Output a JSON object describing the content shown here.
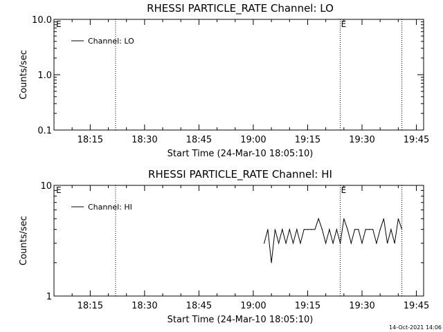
{
  "chart_data": [
    {
      "type": "line",
      "title": "RHESSI PARTICLE_RATE Channel: LO",
      "xlabel": "Start Time (24-Mar-10 18:05:10)",
      "ylabel": "Counts/sec",
      "y_scale": "log",
      "ylim": [
        0.1,
        10.0
      ],
      "y_ticks": [
        0.1,
        1.0,
        10.0
      ],
      "y_tick_labels": [
        "0.1",
        "1.0",
        "10.0"
      ],
      "xlim": [
        "18:05",
        "19:47"
      ],
      "x_ticks": [
        "18:15",
        "18:30",
        "18:45",
        "19:00",
        "19:15",
        "19:30",
        "19:45"
      ],
      "event_lines": [
        {
          "time": "18:22",
          "label": ""
        },
        {
          "time": "19:24",
          "label": "E"
        },
        {
          "time": "19:41",
          "label": ""
        }
      ],
      "edge_marker": "E",
      "legend_position": "top-left",
      "series": [
        {
          "name": "Channel: LO",
          "x": [],
          "y": []
        }
      ]
    },
    {
      "type": "line",
      "title": "RHESSI PARTICLE_RATE Channel: HI",
      "xlabel": "Start Time (24-Mar-10 18:05:10)",
      "ylabel": "Counts/sec",
      "y_scale": "log",
      "ylim": [
        1,
        10
      ],
      "y_ticks": [
        1,
        10
      ],
      "y_tick_labels": [
        "1",
        "10"
      ],
      "xlim": [
        "18:05",
        "19:47"
      ],
      "x_ticks": [
        "18:15",
        "18:30",
        "18:45",
        "19:00",
        "19:15",
        "19:30",
        "19:45"
      ],
      "event_lines": [
        {
          "time": "18:22",
          "label": ""
        },
        {
          "time": "19:24",
          "label": "E"
        },
        {
          "time": "19:41",
          "label": ""
        }
      ],
      "edge_marker": "E",
      "legend_position": "top-left",
      "series": [
        {
          "name": "Channel: HI",
          "x": [
            "19:03",
            "19:04",
            "19:05",
            "19:06",
            "19:07",
            "19:08",
            "19:09",
            "19:10",
            "19:11",
            "19:12",
            "19:13",
            "19:14",
            "19:15",
            "19:16",
            "19:17",
            "19:18",
            "19:19",
            "19:20",
            "19:21",
            "19:22",
            "19:23",
            "19:24",
            "19:25",
            "19:26",
            "19:27",
            "19:28",
            "19:29",
            "19:30",
            "19:31",
            "19:32",
            "19:33",
            "19:34",
            "19:35",
            "19:36",
            "19:37",
            "19:38",
            "19:39",
            "19:40",
            "19:41"
          ],
          "y": [
            3,
            4,
            2,
            4,
            3,
            4,
            3,
            4,
            3,
            4,
            3,
            4,
            4,
            4,
            4,
            5,
            4,
            3,
            4,
            3,
            4,
            3,
            5,
            4,
            3,
            4,
            4,
            3,
            4,
            4,
            4,
            3,
            4,
            5,
            3,
            4,
            3,
            5,
            4
          ]
        }
      ]
    }
  ],
  "footer": {
    "timestamp": "14-Oct-2021 14:06"
  }
}
